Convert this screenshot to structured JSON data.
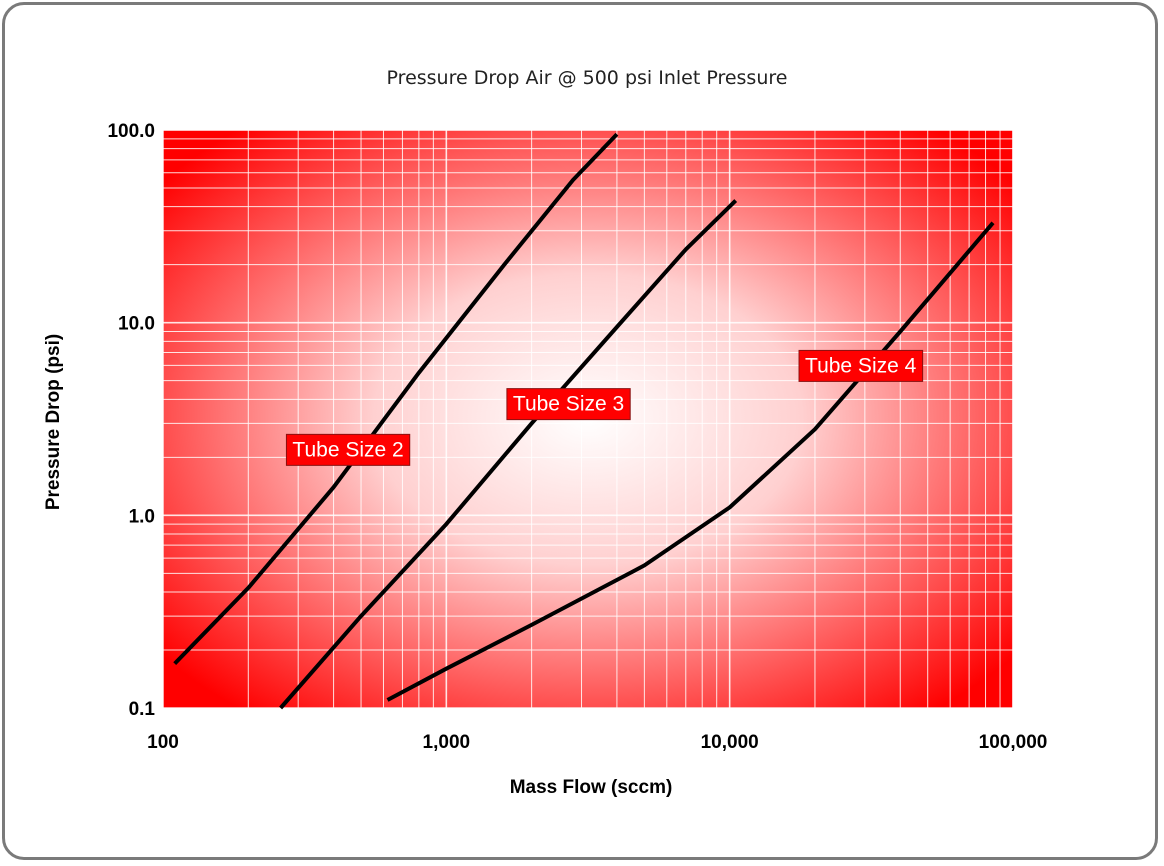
{
  "chart_data": {
    "type": "line",
    "title": "Pressure Drop Air @ 500 psi Inlet Pressure",
    "xlabel": "Mass Flow (sccm)",
    "ylabel": "Pressure Drop (psi)",
    "x_scale": "log",
    "y_scale": "log",
    "xlim": [
      100,
      100000
    ],
    "ylim": [
      0.1,
      100
    ],
    "x_ticks": [
      {
        "value": 100,
        "label": "100"
      },
      {
        "value": 1000,
        "label": "1,000"
      },
      {
        "value": 10000,
        "label": "10,000"
      },
      {
        "value": 100000,
        "label": "100,000"
      }
    ],
    "y_ticks": [
      {
        "value": 0.1,
        "label": "0.1"
      },
      {
        "value": 1,
        "label": "1.0"
      },
      {
        "value": 10,
        "label": "10.0"
      },
      {
        "value": 100,
        "label": "100.0"
      }
    ],
    "grid": true,
    "colors": {
      "plot_edge": "#ff0000",
      "plot_center": "#ffffff",
      "line": "#000000",
      "label_box": "#ff0000"
    },
    "series": [
      {
        "x": [
          110,
          200,
          400,
          800,
          1600,
          2800,
          4000
        ],
        "y": [
          0.17,
          0.42,
          1.4,
          5.5,
          20,
          55,
          95
        ]
      },
      {
        "x": [
          260,
          500,
          1000,
          2000,
          4000,
          7000,
          10500
        ],
        "y": [
          0.1,
          0.3,
          0.9,
          3.0,
          9.5,
          24,
          43
        ]
      },
      {
        "x": [
          620,
          1000,
          2000,
          5000,
          10000,
          20000,
          40000,
          85000
        ],
        "y": [
          0.11,
          0.16,
          0.27,
          0.55,
          1.1,
          2.8,
          9.0,
          33
        ]
      }
    ],
    "annotations": [
      {
        "text": "Tube Size 2",
        "x": 450,
        "y": 2.2
      },
      {
        "text": "Tube Size 3",
        "x": 2700,
        "y": 3.8
      },
      {
        "text": "Tube Size 4",
        "x": 29000,
        "y": 6.0
      }
    ]
  }
}
